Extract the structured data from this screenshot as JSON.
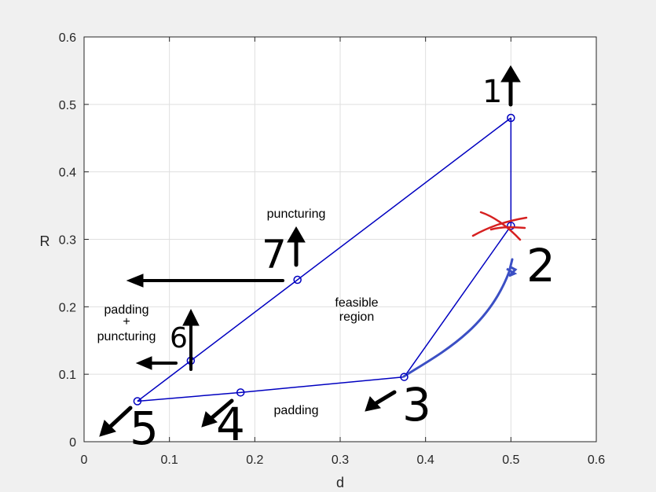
{
  "chart_data": {
    "type": "line",
    "title": "",
    "xlabel": "d",
    "ylabel": "R",
    "xlim": [
      0,
      0.6
    ],
    "ylim": [
      0,
      0.6
    ],
    "xticks": [
      "0",
      "0.1",
      "0.2",
      "0.3",
      "0.4",
      "0.5",
      "0.6"
    ],
    "yticks": [
      "0",
      "0.1",
      "0.2",
      "0.3",
      "0.4",
      "0.5",
      "0.6"
    ],
    "grid": true,
    "series_color": "#0000c0",
    "series": [
      {
        "x": [
          0.0625,
          0.125,
          0.25,
          0.5
        ],
        "y": [
          0.06,
          0.12,
          0.24,
          0.48
        ]
      },
      {
        "x": [
          0.5,
          0.5
        ],
        "y": [
          0.48,
          0.32
        ]
      },
      {
        "x": [
          0.5,
          0.375
        ],
        "y": [
          0.32,
          0.096
        ]
      },
      {
        "x": [
          0.375,
          0.1833,
          0.0625
        ],
        "y": [
          0.096,
          0.073,
          0.06
        ]
      }
    ],
    "points": [
      {
        "x": 0.5,
        "y": 0.48
      },
      {
        "x": 0.5,
        "y": 0.32
      },
      {
        "x": 0.375,
        "y": 0.096
      },
      {
        "x": 0.1833,
        "y": 0.073
      },
      {
        "x": 0.0625,
        "y": 0.06
      },
      {
        "x": 0.125,
        "y": 0.12
      },
      {
        "x": 0.25,
        "y": 0.24
      }
    ],
    "annotations": {
      "puncturing": "puncturing",
      "padding_puncturing_1": "padding",
      "padding_puncturing_2": "+",
      "padding_puncturing_3": "puncturing",
      "feasible_1": "feasible",
      "feasible_2": "region",
      "padding": "padding"
    },
    "handwritten_numbers": [
      "1",
      "2",
      "3",
      "4",
      "5",
      "6",
      "7"
    ],
    "handwritten_cross_color": "#d62020",
    "handwritten_curve_color": "#3b4fc4"
  }
}
